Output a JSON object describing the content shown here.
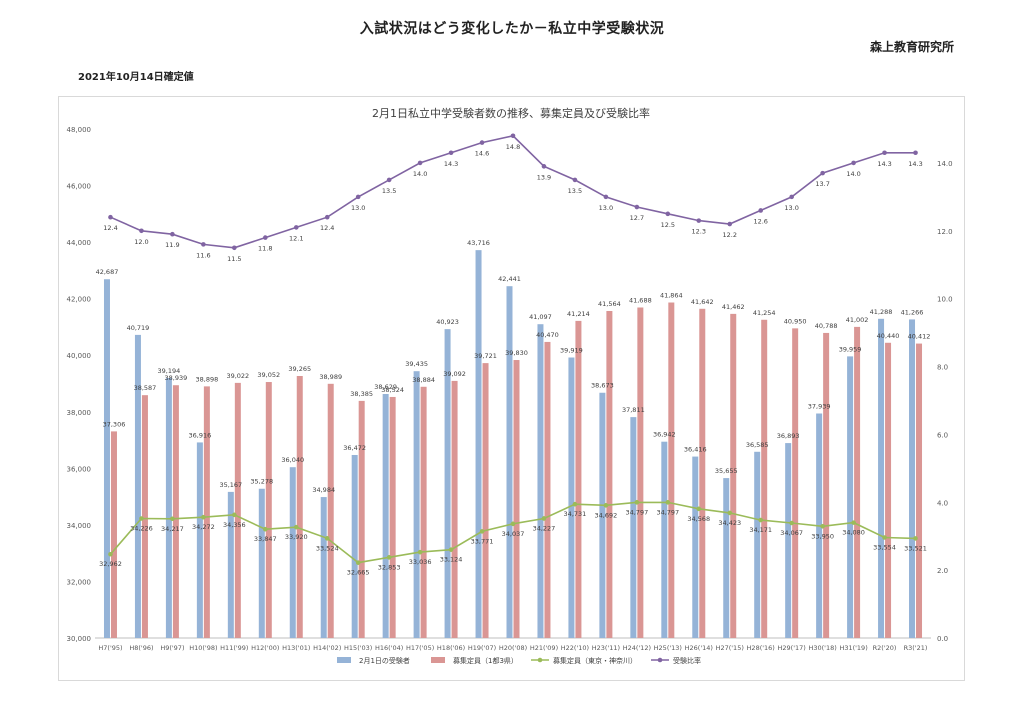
{
  "page": {
    "title": "入試状況はどう変化したか－私立中学受験状況",
    "organization": "森上教育研究所",
    "date_note": "2021年10月14日確定値"
  },
  "chart_data": {
    "type": "bar",
    "title": "2月1日私立中学受験者数の推移、募集定員及び受験比率",
    "categories": [
      "H7('95)",
      "H8('96)",
      "H9('97)",
      "H10('98)",
      "H11('99)",
      "H12('00)",
      "H13('01)",
      "H14('02)",
      "H15('03)",
      "H16('04)",
      "H17('05)",
      "H18('06)",
      "H19('07)",
      "H20('08)",
      "H21('09)",
      "H22('10)",
      "H23('11)",
      "H24('12)",
      "H25('13)",
      "H26('14)",
      "H27('15)",
      "H28('16)",
      "H29('17)",
      "H30('18)",
      "H31('19)",
      "R2('20)",
      "R3('21)"
    ],
    "y_left": {
      "min": 30000,
      "max": 48000,
      "step": 2000,
      "ticks": [
        "30,000",
        "32,000",
        "34,000",
        "36,000",
        "38,000",
        "40,000",
        "42,000",
        "44,000",
        "46,000",
        "48,000"
      ]
    },
    "y_right": {
      "min": 0,
      "max": 15,
      "step": 2,
      "ticks": [
        "0.0",
        "2.0",
        "4.0",
        "6.0",
        "8.0",
        "10.0",
        "12.0",
        "14.0"
      ]
    },
    "grid": false,
    "legend_position": "bottom",
    "colors": {
      "examinees": "#95b3d7",
      "capacity": "#da9694",
      "capacity_tokyo": "#9bbb59",
      "ratio": "#8064a2"
    },
    "series": [
      {
        "name": "2月1日の受験者",
        "type": "bar",
        "axis": "left",
        "values": [
          42687,
          40719,
          39194,
          36916,
          35167,
          35278,
          36040,
          34984,
          36472,
          38629,
          39435,
          40923,
          43716,
          42441,
          41097,
          39919,
          38673,
          37811,
          36942,
          36416,
          35655,
          36585,
          36893,
          37939,
          39959,
          41288,
          41266
        ],
        "labels": [
          "42,687",
          "40,719",
          "39,194",
          "36,916",
          "35,167",
          "35,278",
          "36,040",
          "34,984",
          "36,472",
          "38,629",
          "39,435",
          "40,923",
          "43,716",
          "42,441",
          "41,097",
          "39,919",
          "38,673",
          "37,811",
          "36,942",
          "36,416",
          "35,655",
          "36,585",
          "36,893",
          "37,939",
          "39,959",
          "41,288",
          "41,266"
        ]
      },
      {
        "name": "募集定員（1都3県）",
        "type": "bar",
        "axis": "left",
        "values": [
          37306,
          38587,
          38939,
          38898,
          39022,
          39052,
          39265,
          38989,
          38385,
          38524,
          38884,
          39092,
          39721,
          39830,
          40470,
          41214,
          41564,
          41688,
          41864,
          41642,
          41462,
          41254,
          40950,
          40788,
          41002,
          40440,
          40412
        ],
        "labels": [
          "37,306",
          "38,587",
          "38,939",
          "38,898",
          "39,022",
          "39,052",
          "39,265",
          "38,989",
          "38,385",
          "38,524",
          "38,884",
          "39,092",
          "39,721",
          "39,830",
          "40,470",
          "41,214",
          "41,564",
          "41,688",
          "41,864",
          "41,642",
          "41,462",
          "41,254",
          "40,950",
          "40,788",
          "41,002",
          "40,440",
          "40,412"
        ]
      },
      {
        "name": "募集定員（東京・神奈川）",
        "type": "line",
        "axis": "left",
        "values": [
          32962,
          34226,
          34217,
          34272,
          34356,
          33847,
          33920,
          33524,
          32665,
          32853,
          33036,
          33124,
          33771,
          34037,
          34227,
          34731,
          34692,
          34797,
          34797,
          34568,
          34423,
          34171,
          34067,
          33950,
          34080,
          33554,
          33521
        ],
        "labels": [
          "32,962",
          "34,226",
          "34,217",
          "34,272",
          "34,356",
          "33,847",
          "33,920",
          "33,524",
          "32,665",
          "32,853",
          "33,036",
          "33,124",
          "33,771",
          "34,037",
          "34,227",
          "34,731",
          "34,692",
          "34,797",
          "34,797",
          "34,568",
          "34,423",
          "34,171",
          "34,067",
          "33,950",
          "34,080",
          "33,554",
          "33,521"
        ]
      },
      {
        "name": "受験比率",
        "type": "line",
        "axis": "right",
        "values": [
          12.4,
          12.0,
          11.9,
          11.6,
          11.5,
          11.8,
          12.1,
          12.4,
          13.0,
          13.5,
          14.0,
          14.3,
          14.6,
          14.8,
          13.9,
          13.5,
          13.0,
          12.7,
          12.5,
          12.3,
          12.2,
          12.6,
          13.0,
          13.7,
          14.0,
          14.3,
          14.3
        ],
        "labels": [
          "12.4",
          "12.0",
          "11.9",
          "11.6",
          "11.5",
          "11.8",
          "12.1",
          "12.4",
          "13.0",
          "13.5",
          "14.0",
          "14.3",
          "14.6",
          "14.8",
          "13.9",
          "13.5",
          "13.0",
          "12.7",
          "12.5",
          "12.3",
          "12.2",
          "12.6",
          "13.0",
          "13.7",
          "14.0",
          "14.3",
          "14.3"
        ]
      }
    ]
  }
}
